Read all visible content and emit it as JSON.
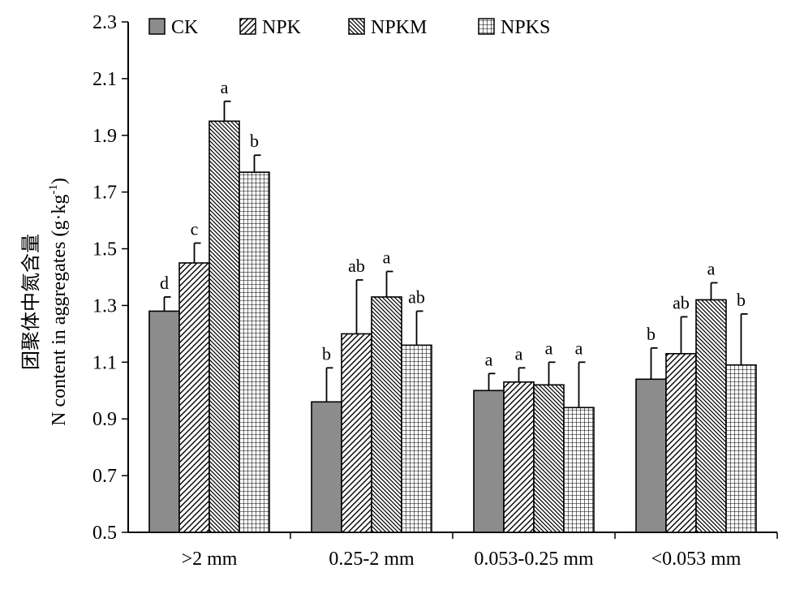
{
  "chart_data": {
    "type": "bar",
    "title": "",
    "ylabel_cn": "团聚体中氮含量",
    "ylabel": "N content in aggregates (g·kg",
    "ylabel_sup": "-1",
    "ylabel_close": ")",
    "xlabel": "",
    "ylim": [
      0.5,
      2.3
    ],
    "yticks": [
      "0.5",
      "0.7",
      "0.9",
      "1.1",
      "1.3",
      "1.5",
      "1.7",
      "1.9",
      "2.1",
      "2.3"
    ],
    "categories": [
      ">2 mm",
      "0.25-2 mm",
      "0.053-0.25 mm",
      "<0.053 mm"
    ],
    "series": [
      {
        "name": "CK",
        "pattern": "solid",
        "values": [
          1.28,
          0.96,
          1.0,
          1.04
        ],
        "errors": [
          0.05,
          0.12,
          0.06,
          0.11
        ],
        "labels": [
          "d",
          "b",
          "a",
          "b"
        ]
      },
      {
        "name": "NPK",
        "pattern": "diag-right",
        "values": [
          1.45,
          1.2,
          1.03,
          1.13
        ],
        "errors": [
          0.07,
          0.19,
          0.05,
          0.13
        ],
        "labels": [
          "c",
          "ab",
          "a",
          "ab"
        ]
      },
      {
        "name": "NPKM",
        "pattern": "diag-left",
        "values": [
          1.95,
          1.33,
          1.02,
          1.32
        ],
        "errors": [
          0.07,
          0.09,
          0.08,
          0.06
        ],
        "labels": [
          "a",
          "a",
          "a",
          "a"
        ]
      },
      {
        "name": "NPKS",
        "pattern": "grid",
        "values": [
          1.77,
          1.16,
          0.94,
          1.09
        ],
        "errors": [
          0.06,
          0.12,
          0.16,
          0.18
        ],
        "labels": [
          "b",
          "ab",
          "a",
          "b"
        ]
      }
    ],
    "legend_position": "top",
    "grid": false,
    "colors": {
      "ck_fill": "#8c8c8c",
      "stroke": "#000000",
      "hatch": "#000000"
    }
  }
}
